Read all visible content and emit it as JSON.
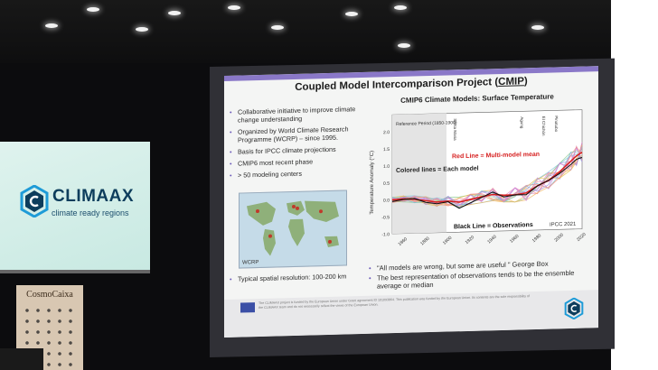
{
  "banner": {
    "brand": "CLIMAAX",
    "tagline": "climate ready regions"
  },
  "sign": {
    "text": "CosmoCaixa"
  },
  "slide": {
    "title_prefix": "Coupled Model Intercomparison Project (",
    "title_acronym": "CMIP",
    "title_suffix": ")",
    "bullets": [
      "Collaborative initiative to improve climate change understanding",
      "Organized by World Climate Research Programme (WCRP) – since 1995.",
      "Basis for IPCC climate projections",
      "CMIP6 most recent phase",
      "> 50 modeling centers"
    ],
    "map_label": "WCRP",
    "resolution": "Typical spatial resolution: 100-200 km",
    "quotes": [
      "\"All models are wrong, but some are useful \" George Box",
      "The best representation of observations tends to be the ensemble average or median"
    ],
    "footer_text": "The CLIMAAX project is funded by the European Union under Grant agreement ID 101093864. This publication was funded by the European Union. Its contents are the sole responsibility of the CLIMAAX team and do not necessarily reflect the views of the European Union."
  },
  "chart_data": {
    "type": "line",
    "title": "CMIP6 Climate Models: Surface Temperature",
    "ylabel": "Temperature Anomaly (°C)",
    "xlabel": "",
    "xlim": [
      1850,
      2020
    ],
    "ylim": [
      -1.0,
      2.5
    ],
    "x_ticks": [
      "1860",
      "1880",
      "1900",
      "1920",
      "1940",
      "1960",
      "1980",
      "2000",
      "2020"
    ],
    "y_ticks": [
      "2.0",
      "1.5",
      "1.0",
      "0.5",
      "0.0",
      "-0.5",
      "-1.0"
    ],
    "reference_period_label": "Reference Period (1850-1900)",
    "volcano_labels": [
      "Santa Maria",
      "Agung",
      "El Chichón",
      "Pinatubo"
    ],
    "annotations": {
      "multimodel_mean": "Red Line = Multi-model mean",
      "each_model": "Colored lines = Each model",
      "observations": "Black Line = Observations",
      "source": "IPCC 2021"
    },
    "series": [
      {
        "name": "Multi-model mean",
        "color": "#d62020",
        "x": [
          1850,
          1860,
          1870,
          1880,
          1890,
          1900,
          1910,
          1920,
          1930,
          1940,
          1950,
          1960,
          1970,
          1980,
          1990,
          2000,
          2010,
          2015,
          2020
        ],
        "values": [
          0.0,
          0.02,
          0.0,
          -0.05,
          -0.1,
          -0.08,
          -0.12,
          -0.05,
          0.02,
          0.08,
          0.05,
          0.05,
          0.1,
          0.3,
          0.45,
          0.7,
          1.0,
          1.15,
          1.25
        ]
      },
      {
        "name": "Observations",
        "color": "#111111",
        "x": [
          1850,
          1860,
          1870,
          1880,
          1890,
          1900,
          1910,
          1920,
          1930,
          1940,
          1950,
          1960,
          1970,
          1980,
          1990,
          2000,
          2010,
          2015,
          2020
        ],
        "values": [
          -0.05,
          0.0,
          0.02,
          -0.1,
          -0.15,
          -0.1,
          -0.3,
          -0.15,
          0.0,
          0.15,
          0.0,
          0.05,
          0.05,
          0.3,
          0.45,
          0.65,
          0.9,
          1.05,
          1.1
        ]
      }
    ]
  }
}
